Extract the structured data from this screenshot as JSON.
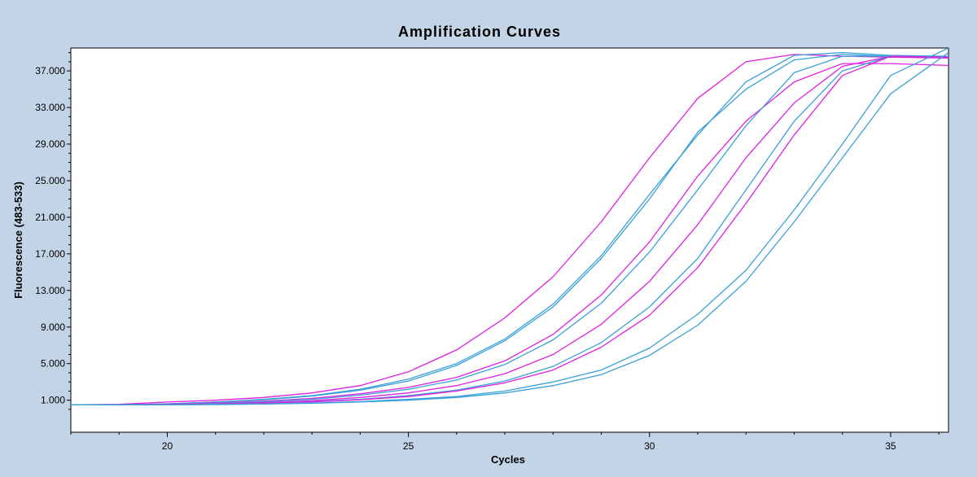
{
  "chart_data": {
    "type": "line",
    "title": "Amplification Curves",
    "xlabel": "Cycles",
    "ylabel": "Fluorescence (483-533)",
    "xlim": [
      18,
      36.2
    ],
    "ylim": [
      -2.5,
      39.5
    ],
    "x_ticks": [
      20,
      25,
      30,
      35
    ],
    "x_tick_labels": [
      "20",
      "25",
      "30",
      "35"
    ],
    "y_ticks": [
      1,
      5,
      9,
      13,
      17,
      21,
      25,
      29,
      33,
      37
    ],
    "y_tick_labels": [
      "1.000",
      "5.000",
      "9.000",
      "13.000",
      "17.000",
      "21.000",
      "25.000",
      "29.000",
      "33.000",
      "37.000"
    ],
    "grid": false,
    "colors": {
      "magenta": "#e020e0",
      "cyan": "#3aa0d8"
    },
    "series": [
      {
        "color": "magenta",
        "x": [
          18,
          19,
          20,
          21,
          22,
          23,
          24,
          25,
          26,
          27,
          28,
          29,
          30,
          31,
          32,
          33,
          34,
          35,
          36.2
        ],
        "y": [
          0.5,
          0.55,
          0.8,
          1.0,
          1.3,
          1.8,
          2.6,
          4.1,
          6.5,
          10.0,
          14.5,
          20.5,
          27.5,
          34.0,
          38.0,
          38.8,
          38.6,
          38.5,
          38.4
        ]
      },
      {
        "color": "cyan",
        "x": [
          18,
          19,
          20,
          21,
          22,
          23,
          24,
          25,
          26,
          27,
          28,
          29,
          30,
          31,
          32,
          33,
          34,
          35,
          36.2
        ],
        "y": [
          0.5,
          0.5,
          0.6,
          0.8,
          1.1,
          1.5,
          2.2,
          3.3,
          5.0,
          7.7,
          11.5,
          16.8,
          23.5,
          30.0,
          35.8,
          38.7,
          39.0,
          38.7,
          38.6
        ]
      },
      {
        "color": "cyan",
        "x": [
          18,
          19,
          20,
          21,
          22,
          23,
          24,
          25,
          26,
          27,
          28,
          29,
          30,
          31,
          32,
          33,
          34,
          35,
          36.2
        ],
        "y": [
          0.5,
          0.5,
          0.6,
          0.8,
          1.05,
          1.45,
          2.1,
          3.1,
          4.8,
          7.5,
          11.2,
          16.5,
          23.0,
          30.3,
          35.0,
          38.2,
          38.8,
          38.6,
          38.5
        ]
      },
      {
        "color": "magenta",
        "x": [
          18,
          19,
          20,
          21,
          22,
          23,
          24,
          25,
          26,
          27,
          28,
          29,
          30,
          31,
          32,
          33,
          34,
          35,
          36.2
        ],
        "y": [
          0.5,
          0.5,
          0.55,
          0.7,
          0.9,
          1.2,
          1.7,
          2.4,
          3.5,
          5.3,
          8.2,
          12.5,
          18.3,
          25.5,
          31.5,
          35.8,
          37.8,
          37.8,
          37.6
        ]
      },
      {
        "color": "cyan",
        "x": [
          18,
          19,
          20,
          21,
          22,
          23,
          24,
          25,
          26,
          27,
          28,
          29,
          30,
          31,
          32,
          33,
          34,
          35,
          36.2
        ],
        "y": [
          0.5,
          0.5,
          0.55,
          0.65,
          0.85,
          1.1,
          1.55,
          2.2,
          3.2,
          4.9,
          7.6,
          11.6,
          17.2,
          24.0,
          31.0,
          36.8,
          38.6,
          38.6,
          38.5
        ]
      },
      {
        "color": "magenta",
        "x": [
          18,
          19,
          20,
          21,
          22,
          23,
          24,
          25,
          26,
          27,
          28,
          29,
          30,
          31,
          32,
          33,
          34,
          35,
          36.2
        ],
        "y": [
          0.5,
          0.5,
          0.55,
          0.6,
          0.75,
          0.95,
          1.3,
          1.8,
          2.6,
          3.9,
          6.0,
          9.3,
          14.0,
          20.2,
          27.5,
          33.5,
          37.5,
          38.6,
          38.5
        ]
      },
      {
        "color": "cyan",
        "x": [
          18,
          19,
          20,
          21,
          22,
          23,
          24,
          25,
          26,
          27,
          28,
          29,
          30,
          31,
          32,
          33,
          34,
          35,
          36.2
        ],
        "y": [
          0.5,
          0.5,
          0.55,
          0.6,
          0.7,
          0.85,
          1.1,
          1.5,
          2.1,
          3.1,
          4.7,
          7.3,
          11.2,
          16.5,
          24.0,
          31.5,
          37.0,
          38.6,
          38.5
        ]
      },
      {
        "color": "magenta",
        "x": [
          18,
          19,
          20,
          21,
          22,
          23,
          24,
          25,
          26,
          27,
          28,
          29,
          30,
          31,
          32,
          33,
          34,
          35,
          36.2
        ],
        "y": [
          0.5,
          0.5,
          0.55,
          0.6,
          0.7,
          0.82,
          1.05,
          1.4,
          2.0,
          2.9,
          4.3,
          6.8,
          10.3,
          15.5,
          22.5,
          30.0,
          36.5,
          38.6,
          38.5
        ]
      },
      {
        "color": "cyan",
        "x": [
          18,
          19,
          20,
          21,
          22,
          23,
          24,
          25,
          26,
          27,
          28,
          29,
          30,
          31,
          32,
          33,
          34,
          35,
          36.2
        ],
        "y": [
          0.5,
          0.5,
          0.5,
          0.55,
          0.6,
          0.7,
          0.85,
          1.1,
          1.4,
          2.0,
          3.0,
          4.3,
          6.7,
          10.4,
          15.2,
          21.8,
          29.0,
          36.5,
          39.5
        ]
      },
      {
        "color": "cyan",
        "x": [
          18,
          19,
          20,
          21,
          22,
          23,
          24,
          25,
          26,
          27,
          28,
          29,
          30,
          31,
          32,
          33,
          34,
          35,
          36.2
        ],
        "y": [
          0.5,
          0.5,
          0.5,
          0.52,
          0.58,
          0.66,
          0.8,
          1.0,
          1.3,
          1.8,
          2.6,
          3.8,
          5.9,
          9.2,
          14.0,
          20.5,
          27.5,
          34.5,
          39.0
        ]
      }
    ]
  }
}
